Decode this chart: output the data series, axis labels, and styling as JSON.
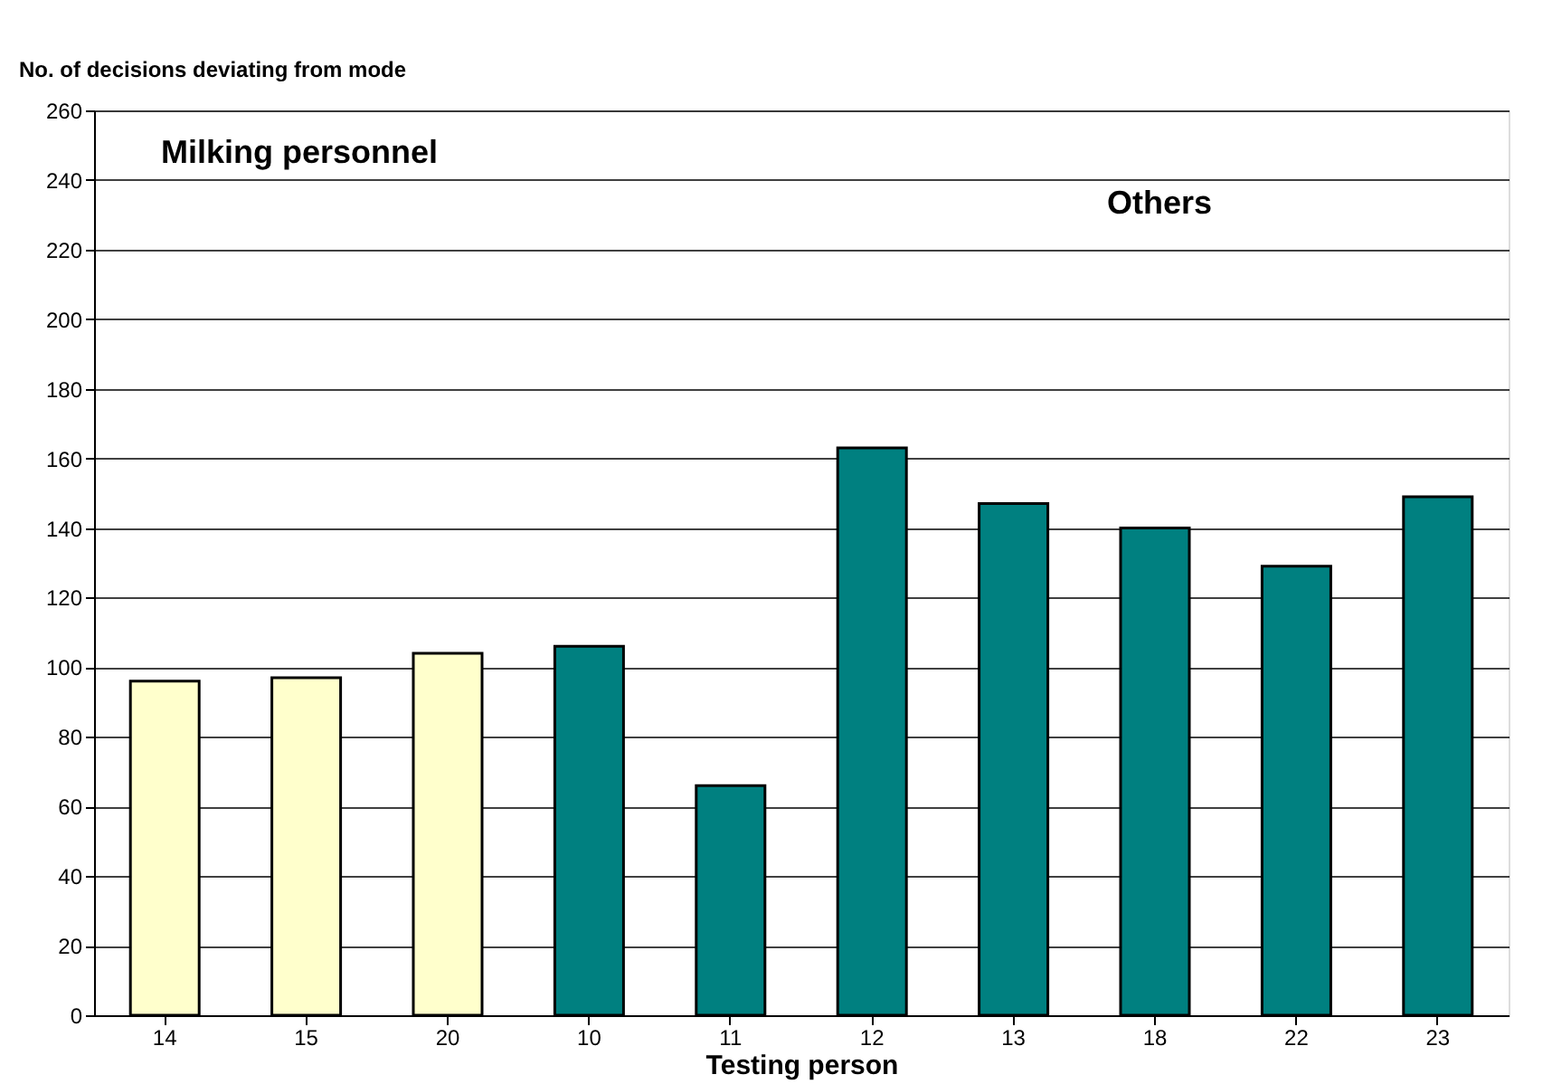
{
  "chart_data": {
    "type": "bar",
    "xlabel": "Testing person",
    "ylabel": "No. of decisions deviating from mode",
    "categories": [
      "14",
      "15",
      "20",
      "10",
      "11",
      "12",
      "13",
      "18",
      "22",
      "23"
    ],
    "values": [
      96,
      97,
      104,
      106,
      66,
      163,
      147,
      140,
      129,
      149
    ],
    "colors": [
      "#ffffcc",
      "#ffffcc",
      "#ffffcc",
      "#008080",
      "#008080",
      "#008080",
      "#008080",
      "#008080",
      "#008080",
      "#008080"
    ],
    "annotations": [
      "Milking personnel",
      "Others"
    ],
    "ylim": [
      0,
      260
    ],
    "yticks": [
      0,
      20,
      40,
      60,
      80,
      100,
      120,
      140,
      160,
      180,
      200,
      220,
      240,
      260
    ],
    "grid": "y"
  }
}
